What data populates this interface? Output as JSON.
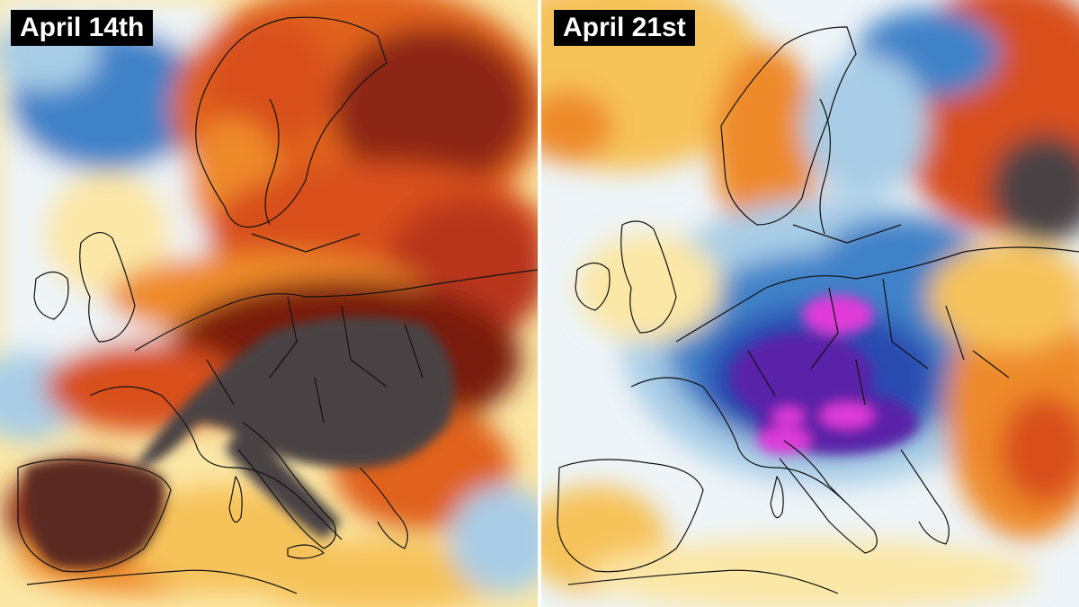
{
  "panels": [
    {
      "date_label": "April 14th",
      "scheme": "warm-anomaly"
    },
    {
      "date_label": "April 21st",
      "scheme": "cold-anomaly"
    }
  ],
  "colors": {
    "background_white": "#f4f8fa",
    "light_blue": "#a9cde6",
    "blue": "#3f82c8",
    "deep_blue": "#2b4cb0",
    "violet": "#5a22a8",
    "magenta": "#e03ad8",
    "pale_yellow": "#fbe7a6",
    "yellow": "#f6c25a",
    "orange": "#ee8a2a",
    "red_orange": "#d8501a",
    "dark_red": "#7a1a10",
    "dark_gray": "#4a4244",
    "coastline": "#111111"
  }
}
